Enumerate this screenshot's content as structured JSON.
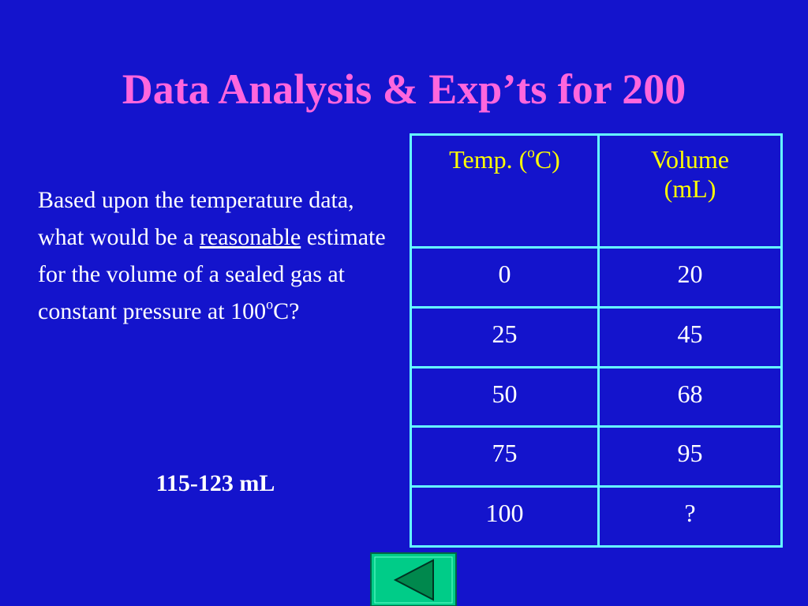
{
  "header": {
    "title": "Data Analysis & Exp’ts for 200"
  },
  "question": {
    "parts": [
      "Based upon the temperature data, what would be a ",
      "reasonable",
      " estimate for the volume of a sealed gas at constant pressure at 100",
      "o",
      "C?"
    ]
  },
  "answer": "115-123 mL",
  "table": {
    "headers": [
      [
        "Temp. (",
        "o",
        "C)"
      ],
      [
        "Volume (mL)"
      ]
    ],
    "rows": [
      [
        "0",
        "20"
      ],
      [
        "25",
        "45"
      ],
      [
        "50",
        "68"
      ],
      [
        "75",
        "95"
      ],
      [
        "100",
        "?"
      ]
    ]
  }
}
